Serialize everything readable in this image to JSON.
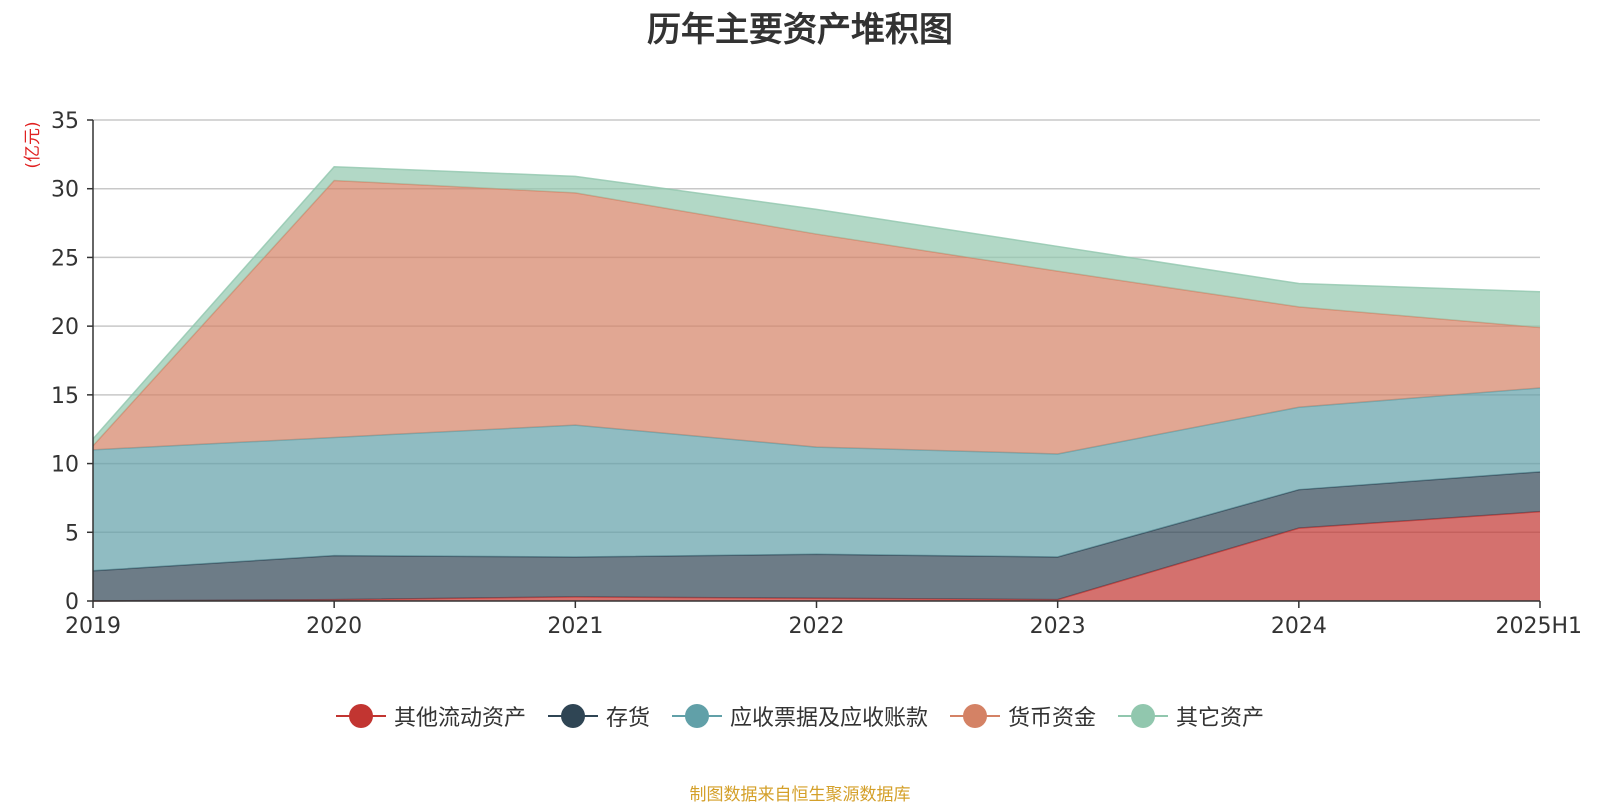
{
  "chart_data": {
    "type": "area",
    "title": "历年主要资产堆积图",
    "ylabel": "(亿元)",
    "xlabel": "",
    "categories": [
      "2019",
      "2020",
      "2021",
      "2022",
      "2023",
      "2024",
      "2025H1"
    ],
    "ylim": [
      0,
      35
    ],
    "yticks": [
      0,
      5,
      10,
      15,
      20,
      25,
      30,
      35
    ],
    "stacked": true,
    "grid": true,
    "legend_position": "bottom",
    "series": [
      {
        "name": "其他流动资产",
        "color": "#c23531",
        "values": [
          0.0,
          0.1,
          0.3,
          0.2,
          0.1,
          5.3,
          6.5
        ]
      },
      {
        "name": "存货",
        "color": "#2f4554",
        "values": [
          2.2,
          3.2,
          2.9,
          3.2,
          3.1,
          2.8,
          2.9
        ]
      },
      {
        "name": "应收票据及应收账款",
        "color": "#61a0a8",
        "values": [
          8.8,
          8.6,
          9.6,
          7.8,
          7.5,
          6.0,
          6.1
        ]
      },
      {
        "name": "货币资金",
        "color": "#d48265",
        "values": [
          0.3,
          18.7,
          16.9,
          15.5,
          13.3,
          7.3,
          4.4
        ]
      },
      {
        "name": "其它资产",
        "color": "#91c7ae",
        "values": [
          0.5,
          1.0,
          1.2,
          1.8,
          1.8,
          1.7,
          2.6
        ]
      }
    ]
  },
  "source_note": "制图数据来自恒生聚源数据库"
}
